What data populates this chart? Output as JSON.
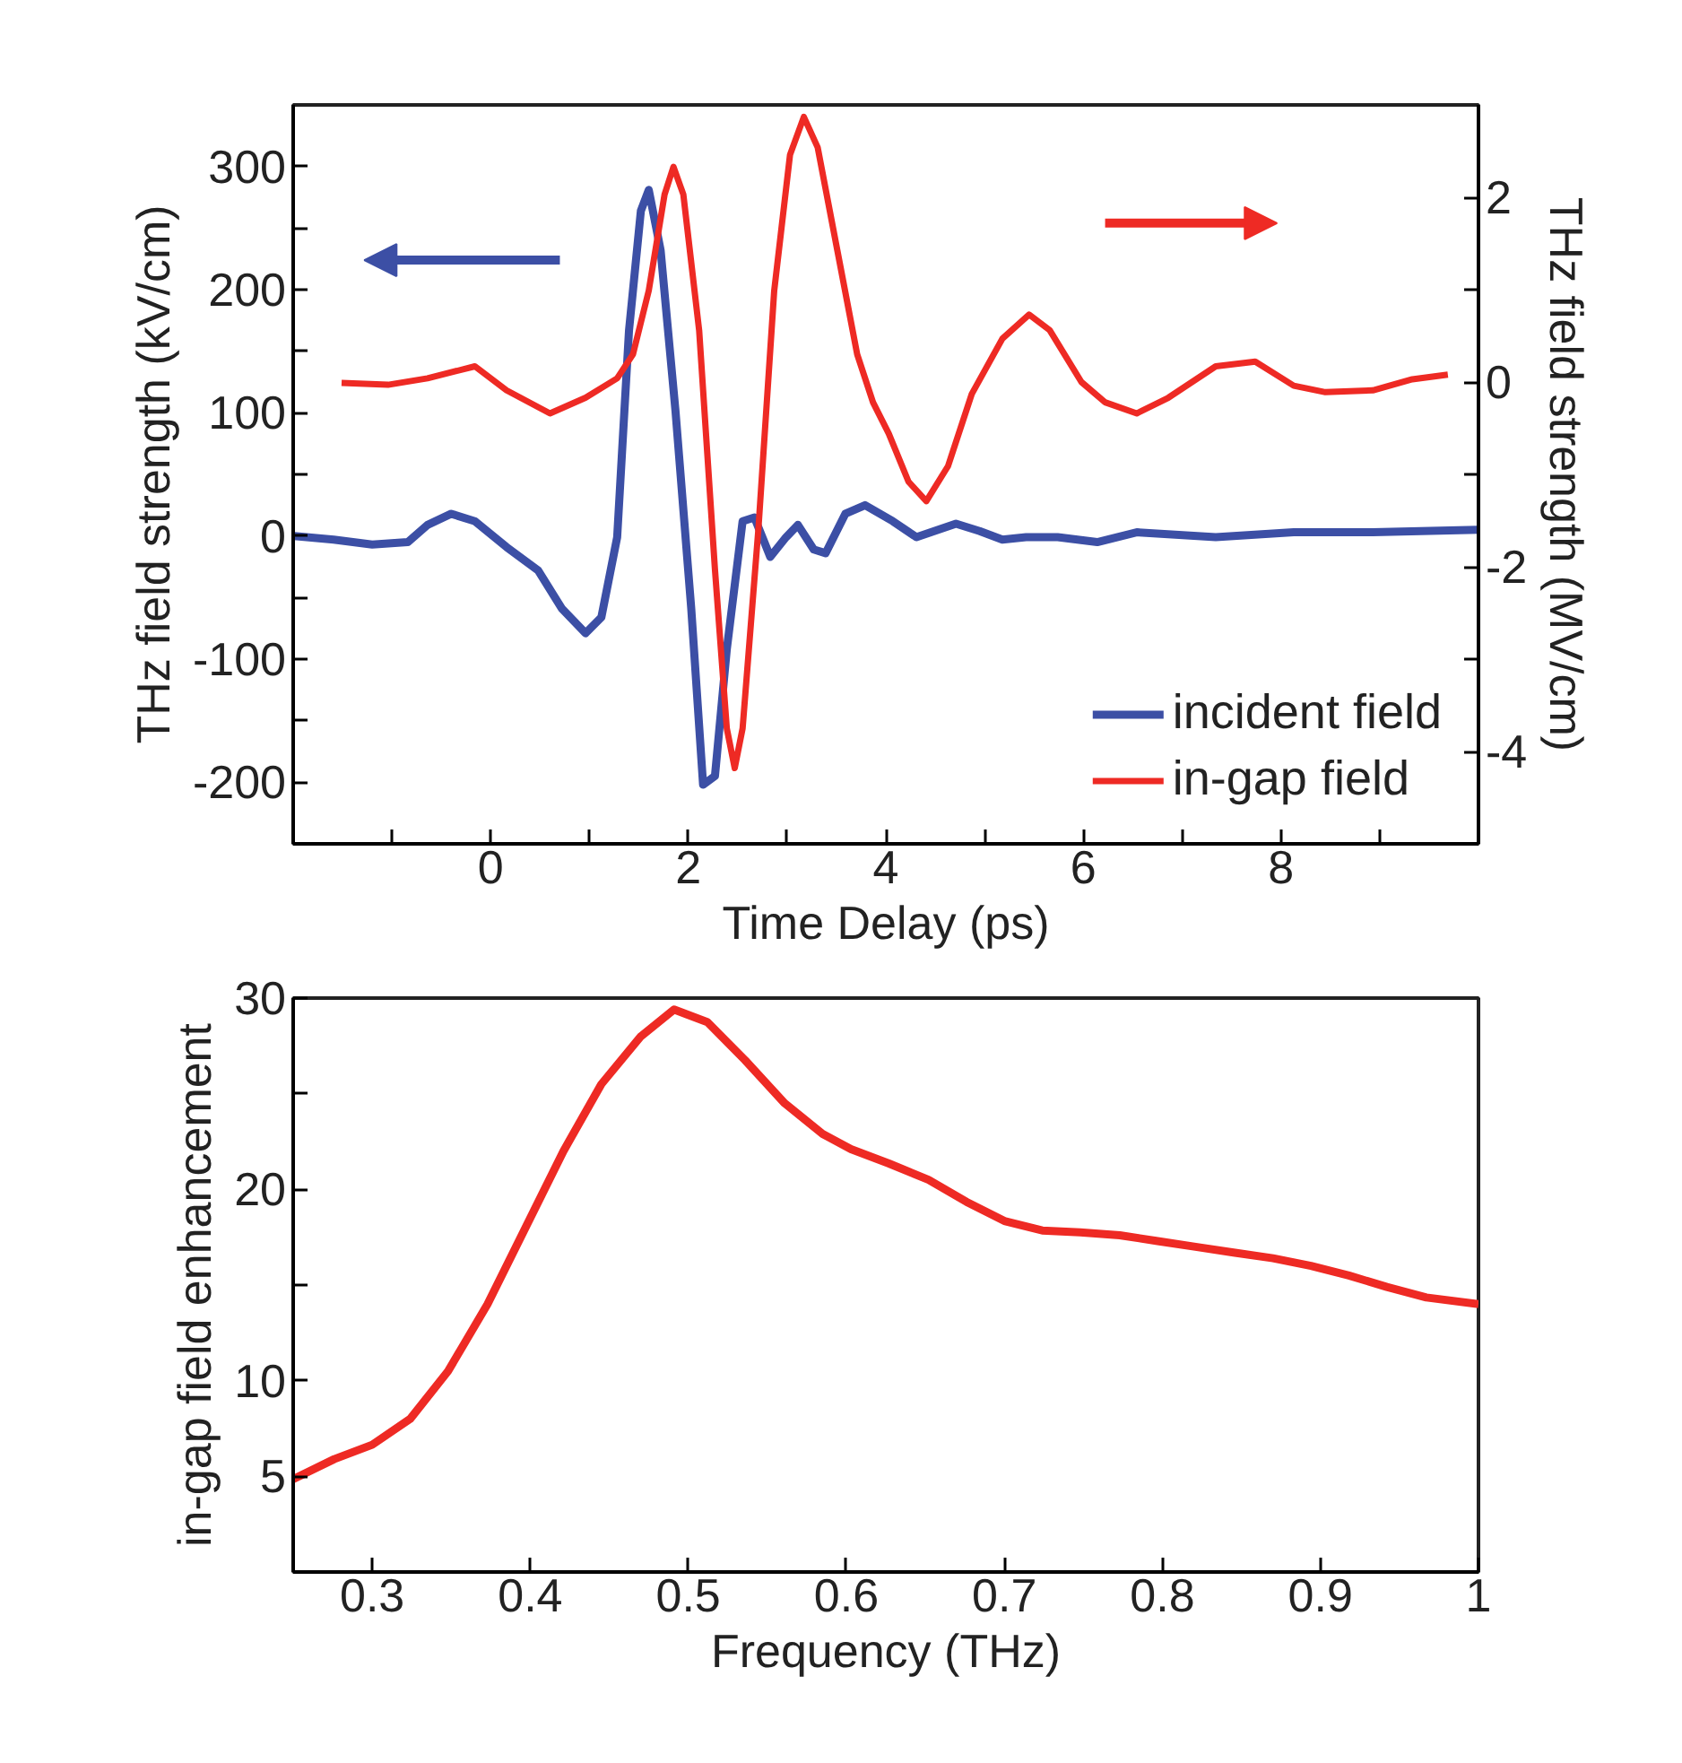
{
  "chart_data": [
    {
      "type": "line",
      "xlabel": "Time Delay (ps)",
      "ylabel": "THz field strength (kV/cm)",
      "y2label": "THz field strength (MV/cm)",
      "xlim": [
        -2,
        10
      ],
      "xticks": [
        {
          "value": -1,
          "label": null
        },
        0,
        {
          "value": 1,
          "label": null
        },
        2,
        {
          "value": 3,
          "label": null
        },
        4,
        {
          "value": 5,
          "label": null
        },
        6,
        {
          "value": 7,
          "label": null
        },
        8,
        {
          "value": 9,
          "label": null
        }
      ],
      "ylim": [
        -250,
        350
      ],
      "yticks": [
        -200,
        {
          "value": -150,
          "label": null
        },
        -100,
        {
          "value": -50,
          "label": null
        },
        0,
        {
          "value": 50,
          "label": null
        },
        100,
        {
          "value": 150,
          "label": null
        },
        200,
        {
          "value": 250,
          "label": null
        },
        300
      ],
      "y2lim": [
        -5,
        3
      ],
      "y2ticks": [
        -4,
        {
          "value": -3,
          "label": null
        },
        -2,
        {
          "value": -1,
          "label": null
        },
        0,
        {
          "value": 1,
          "label": null
        },
        2
      ],
      "legend": "bottom right",
      "grid": false,
      "series": [
        {
          "name": "incident field",
          "color": "#3c4fa5",
          "axis": "y",
          "x": [
            -1.99,
            -1.59,
            -1.2,
            -0.84,
            -0.64,
            -0.4,
            -0.16,
            0.16,
            0.48,
            0.72,
            0.96,
            1.12,
            1.28,
            1.4,
            1.52,
            1.6,
            1.72,
            1.87,
            2.03,
            2.15,
            2.27,
            2.39,
            2.55,
            2.67,
            2.83,
            2.99,
            3.11,
            3.27,
            3.39,
            3.59,
            3.79,
            4.07,
            4.31,
            4.71,
            4.95,
            5.18,
            5.42,
            5.74,
            6.14,
            6.54,
            7.34,
            8.13,
            8.93,
            10
          ],
          "values": [
            0,
            -3,
            -7,
            -5,
            9,
            18,
            12,
            -9,
            -28,
            -59,
            -79,
            -66,
            -1,
            167,
            264,
            281,
            232,
            102,
            -59,
            -202,
            -195,
            -92,
            12,
            15,
            -17,
            -1,
            9,
            -11,
            -14,
            18,
            25,
            12,
            -1,
            10,
            4,
            -3,
            -1,
            -1,
            -5,
            3,
            -1,
            3,
            3,
            5
          ]
        },
        {
          "name": "in-gap field",
          "color": "#ee2a24",
          "axis": "y2",
          "x": [
            -1.51,
            -1.04,
            -0.64,
            -0.16,
            0.16,
            0.6,
            0.96,
            1.28,
            1.44,
            1.6,
            1.76,
            1.85,
            1.95,
            2.11,
            2.27,
            2.39,
            2.47,
            2.55,
            2.71,
            2.87,
            3.03,
            3.17,
            3.31,
            3.51,
            3.71,
            3.87,
            4.03,
            4.23,
            4.41,
            4.63,
            4.87,
            5.18,
            5.45,
            5.66,
            5.98,
            6.22,
            6.54,
            6.86,
            7.34,
            7.74,
            8.13,
            8.45,
            8.93,
            9.33,
            9.69
          ],
          "values": [
            -0.01,
            -0.03,
            0.04,
            0.17,
            -0.09,
            -0.34,
            -0.17,
            0.04,
            0.3,
            0.99,
            2.03,
            2.33,
            2.03,
            0.56,
            -2.03,
            -3.75,
            -4.18,
            -3.75,
            -1.59,
            0.99,
            2.46,
            2.87,
            2.54,
            1.42,
            0.3,
            -0.22,
            -0.56,
            -1.08,
            -1.29,
            -0.91,
            -0.13,
            0.47,
            0.73,
            0.56,
            0,
            -0.22,
            -0.34,
            -0.17,
            0.17,
            0.22,
            -0.04,
            -0.11,
            -0.09,
            0.03,
            0.08
          ]
        }
      ]
    },
    {
      "type": "line",
      "xlabel": "Frequency (THz)",
      "ylabel": "in-gap field enhancement",
      "xlim": [
        0.25,
        1
      ],
      "xticks": [
        0.3,
        0.4,
        0.5,
        0.6,
        0.7,
        0.8,
        0.9,
        1
      ],
      "ylim": [
        0,
        30
      ],
      "yticks": [
        5,
        10,
        {
          "value": 15,
          "label": null
        },
        20,
        {
          "value": 25,
          "label": null
        },
        30
      ],
      "grid": false,
      "series": [
        {
          "color": "#ee2a24",
          "x": [
            0.25,
            0.276,
            0.3,
            0.324,
            0.348,
            0.373,
            0.397,
            0.421,
            0.445,
            0.47,
            0.491,
            0.512,
            0.536,
            0.561,
            0.585,
            0.603,
            0.627,
            0.652,
            0.676,
            0.7,
            0.724,
            0.748,
            0.773,
            0.797,
            0.821,
            0.845,
            0.87,
            0.894,
            0.918,
            0.942,
            0.967,
            1.0
          ],
          "values": [
            4.85,
            5.9,
            6.65,
            8.0,
            10.5,
            14.0,
            18.0,
            22.0,
            25.5,
            28.0,
            29.4,
            28.75,
            26.75,
            24.5,
            22.9,
            22.1,
            21.35,
            20.5,
            19.35,
            18.35,
            17.85,
            17.75,
            17.6,
            17.3,
            17.0,
            16.7,
            16.4,
            16.0,
            15.5,
            14.9,
            14.35,
            14.0
          ]
        }
      ]
    }
  ]
}
